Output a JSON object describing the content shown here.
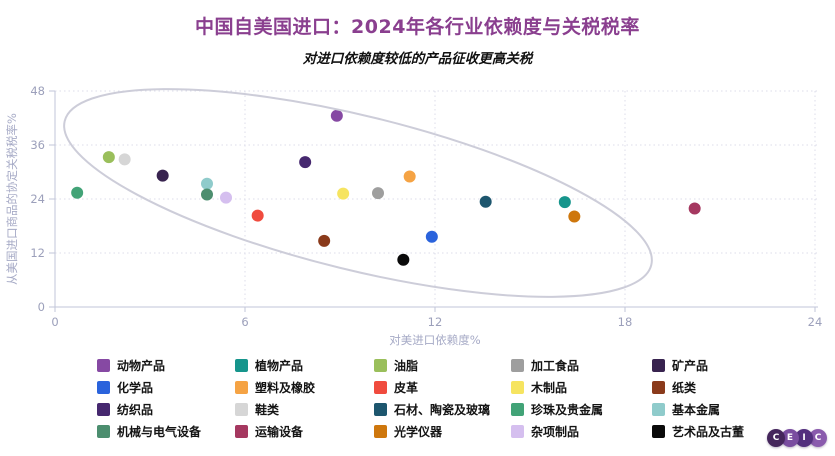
{
  "title": {
    "text": "中国自美国进口：2024年各行业依赖度与关税税率",
    "color": "#8A3F8F"
  },
  "subtitle": "对进口依赖度较低的产品征收更高关税",
  "chart_data": {
    "type": "scatter",
    "xlabel": "对美进口依赖度%",
    "ylabel": "从美国进口商品的协定关税税率%",
    "xlim": [
      0,
      24
    ],
    "ylim": [
      0,
      48
    ],
    "xticks": [
      0,
      6,
      12,
      18,
      24
    ],
    "yticks": [
      0,
      12,
      24,
      36,
      48
    ],
    "grid": "dotted",
    "legend_position": "bottom",
    "annotation": {
      "shape": "tilted-ellipse",
      "note": "downward trend band from high-tariff/low-dependence to low-tariff/high-dependence"
    },
    "series": [
      {
        "name": "动物产品",
        "color": "#8649A3",
        "x": 8.9,
        "y": 42.5
      },
      {
        "name": "植物产品",
        "color": "#16958C",
        "x": 16.1,
        "y": 23.3
      },
      {
        "name": "油脂",
        "color": "#9ABF5B",
        "x": 1.7,
        "y": 33.3
      },
      {
        "name": "加工食品",
        "color": "#9E9E9E",
        "x": 10.2,
        "y": 25.3
      },
      {
        "name": "矿产品",
        "color": "#38234F",
        "x": 3.4,
        "y": 29.2
      },
      {
        "name": "化学品",
        "color": "#2A63DC",
        "x": 11.9,
        "y": 15.6
      },
      {
        "name": "塑料及橡胶",
        "color": "#F5A344",
        "x": 11.2,
        "y": 29.0
      },
      {
        "name": "皮革",
        "color": "#F04B3E",
        "x": 6.4,
        "y": 20.3
      },
      {
        "name": "木制品",
        "color": "#F6E460",
        "x": 9.1,
        "y": 25.2
      },
      {
        "name": "纸类",
        "color": "#8A3A1B",
        "x": 8.5,
        "y": 14.7
      },
      {
        "name": "纺织品",
        "color": "#46286F",
        "x": 7.9,
        "y": 32.2
      },
      {
        "name": "鞋类",
        "color": "#D6D6D6",
        "x": 2.2,
        "y": 32.8
      },
      {
        "name": "石材、陶瓷及玻璃",
        "color": "#1D566E",
        "x": 13.6,
        "y": 23.4
      },
      {
        "name": "珍珠及贵金属",
        "color": "#42A377",
        "x": 0.7,
        "y": 25.4
      },
      {
        "name": "基本金属",
        "color": "#8FCBCB",
        "x": 4.8,
        "y": 27.4
      },
      {
        "name": "机械与电气设备",
        "color": "#4C8E6F",
        "x": 4.8,
        "y": 25.0
      },
      {
        "name": "运输设备",
        "color": "#A53860",
        "x": 20.2,
        "y": 21.9
      },
      {
        "name": "光学仪器",
        "color": "#CE770D",
        "x": 16.4,
        "y": 20.1
      },
      {
        "name": "杂项制品",
        "color": "#D5BFEF",
        "x": 5.4,
        "y": 24.3
      },
      {
        "name": "艺术品及古董",
        "color": "#0A0A0A",
        "x": 11.0,
        "y": 10.5
      }
    ]
  },
  "colors": {
    "axis_line": "#C2C6D8",
    "grid_line": "#DCDDEA",
    "tick_label": "#9CA0BB",
    "axis_title": "#A6AAC6",
    "ellipse_stroke": "#CDCDD9"
  },
  "logo": {
    "letters": [
      "C",
      "E",
      "I",
      "C"
    ],
    "colors": [
      "#45265C",
      "#7A4DA0",
      "#532F7E",
      "#8A5BAD"
    ]
  }
}
